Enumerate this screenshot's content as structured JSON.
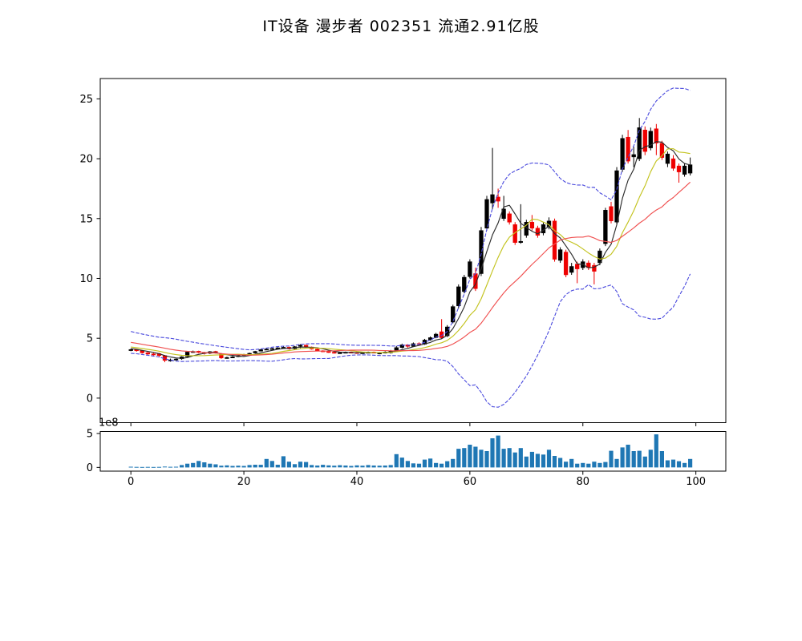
{
  "title": "IT设备 漫步者 002351 流通2.91亿股",
  "chart_data": {
    "type": "candlestick",
    "title": "IT设备 漫步者 002351 流通2.91亿股",
    "panels": [
      {
        "name": "price",
        "type": "candlestick",
        "xlim": [
          -5.42,
          105.3
        ],
        "ylim": [
          -2.05,
          26.7
        ],
        "yticks": [
          0,
          5,
          10,
          15,
          20,
          25
        ],
        "xticks": [
          0,
          20,
          40,
          60,
          80,
          100
        ],
        "grid": false,
        "up_color": "#000000",
        "down_color": "#ee0000",
        "open": [
          3.98,
          4.06,
          3.96,
          3.8,
          3.7,
          3.72,
          3.55,
          3.18,
          3.2,
          3.28,
          3.47,
          3.86,
          3.92,
          3.82,
          3.74,
          3.9,
          3.72,
          3.36,
          3.42,
          3.46,
          3.56,
          3.66,
          3.77,
          3.92,
          4.07,
          4.12,
          4.17,
          4.22,
          4.25,
          4.13,
          4.31,
          4.42,
          4.27,
          4.1,
          3.96,
          3.9,
          3.84,
          3.78,
          3.81,
          3.85,
          3.82,
          3.77,
          3.81,
          3.85,
          3.72,
          3.79,
          3.78,
          3.96,
          4.23,
          4.45,
          4.33,
          4.56,
          4.5,
          4.86,
          5.06,
          5.55,
          5.2,
          6.35,
          7.7,
          8.9,
          10.15,
          10.4,
          10.4,
          14.2,
          16.3,
          16.8,
          15.0,
          15.4,
          14.5,
          13.0,
          13.6,
          14.7,
          14.2,
          13.8,
          14.3,
          14.8,
          11.5,
          12.2,
          10.5,
          11.2,
          10.9,
          11.3,
          11.1,
          11.3,
          12.9,
          16.0,
          14.7,
          19.1,
          21.8,
          20.15,
          20.0,
          22.4,
          20.9,
          22.5,
          21.3,
          19.6,
          20.0,
          19.4,
          18.7,
          18.8
        ],
        "high": [
          4.12,
          4.1,
          4.0,
          3.85,
          3.78,
          3.78,
          3.6,
          3.3,
          3.32,
          3.5,
          3.9,
          3.97,
          3.96,
          3.87,
          3.93,
          3.95,
          3.76,
          3.46,
          3.52,
          3.6,
          3.7,
          3.8,
          3.95,
          4.1,
          4.16,
          4.2,
          4.26,
          4.32,
          4.3,
          4.35,
          4.5,
          4.46,
          4.31,
          4.14,
          4.0,
          3.95,
          3.88,
          3.86,
          3.89,
          3.89,
          3.86,
          3.85,
          3.89,
          3.89,
          3.85,
          3.92,
          4.02,
          4.35,
          4.55,
          4.5,
          4.65,
          4.66,
          4.95,
          5.15,
          5.45,
          6.6,
          6.1,
          7.8,
          9.5,
          10.3,
          11.6,
          10.9,
          14.3,
          16.9,
          20.9,
          17.5,
          16.9,
          15.6,
          14.7,
          16.2,
          14.9,
          15.3,
          14.4,
          14.7,
          15.1,
          15.0,
          12.6,
          12.4,
          11.3,
          11.4,
          11.6,
          11.5,
          11.3,
          12.5,
          15.9,
          16.4,
          19.3,
          22.0,
          22.4,
          21.0,
          23.4,
          22.7,
          22.6,
          22.9,
          21.5,
          20.6,
          20.3,
          19.6,
          19.6,
          20.1
        ],
        "low": [
          3.92,
          3.88,
          3.72,
          3.6,
          3.55,
          3.4,
          3.0,
          3.05,
          3.1,
          3.2,
          3.42,
          3.78,
          3.74,
          3.64,
          3.68,
          3.72,
          3.28,
          3.3,
          3.36,
          3.42,
          3.52,
          3.6,
          3.72,
          3.9,
          4.02,
          4.06,
          4.1,
          4.16,
          4.06,
          4.08,
          4.18,
          4.2,
          4.05,
          3.92,
          3.84,
          3.78,
          3.72,
          3.72,
          3.77,
          3.76,
          3.7,
          3.72,
          3.77,
          3.76,
          3.66,
          3.73,
          3.72,
          3.9,
          4.15,
          4.22,
          4.28,
          4.38,
          4.45,
          4.8,
          5.0,
          4.95,
          5.1,
          6.25,
          7.5,
          8.75,
          10.0,
          8.95,
          10.2,
          14.0,
          15.8,
          15.9,
          14.8,
          14.5,
          12.8,
          12.9,
          13.4,
          14.0,
          13.4,
          13.6,
          14.1,
          11.4,
          11.3,
          10.1,
          10.3,
          9.6,
          10.7,
          10.7,
          9.5,
          11.1,
          12.7,
          14.6,
          14.5,
          18.9,
          19.6,
          19.3,
          19.8,
          20.3,
          20.7,
          20.3,
          19.9,
          19.3,
          19.0,
          18.0,
          18.5,
          18.6
        ],
        "close": [
          4.06,
          3.95,
          3.78,
          3.68,
          3.62,
          3.55,
          3.15,
          3.2,
          3.27,
          3.45,
          3.85,
          3.9,
          3.8,
          3.72,
          3.88,
          3.78,
          3.35,
          3.4,
          3.45,
          3.55,
          3.65,
          3.75,
          3.9,
          4.05,
          4.1,
          4.15,
          4.2,
          4.25,
          4.12,
          4.3,
          4.42,
          4.25,
          4.1,
          3.95,
          3.88,
          3.82,
          3.78,
          3.8,
          3.84,
          3.8,
          3.76,
          3.8,
          3.84,
          3.8,
          3.78,
          3.85,
          3.95,
          4.22,
          4.45,
          4.32,
          4.55,
          4.48,
          4.85,
          5.05,
          5.35,
          5.05,
          5.95,
          7.65,
          9.3,
          10.1,
          11.4,
          9.15,
          14.0,
          16.6,
          17.0,
          16.45,
          15.8,
          14.7,
          13.0,
          13.1,
          14.7,
          14.2,
          13.6,
          14.5,
          14.8,
          11.6,
          12.4,
          10.3,
          11.0,
          10.8,
          11.4,
          10.9,
          10.6,
          12.3,
          15.7,
          14.8,
          19.0,
          21.7,
          19.8,
          20.35,
          22.6,
          20.6,
          22.3,
          21.3,
          20.1,
          20.4,
          19.2,
          18.9,
          19.4,
          19.5
        ],
        "overlays": {
          "moving_averages": [
            {
              "name": "MA5",
              "period": 5,
              "color": "#2b2b2b"
            },
            {
              "name": "MA10",
              "period": 10,
              "color": "#c3c31e"
            },
            {
              "name": "MA20",
              "period": 20,
              "color": "#f05050"
            }
          ],
          "bollinger": {
            "period": 20,
            "num_std": 2,
            "color": "#4848dd",
            "linestyle": "dashed"
          },
          "indicator_warmup_closes": [
            5.6,
            5.5,
            5.4,
            5.3,
            5.2,
            5.1,
            5.0,
            4.9,
            4.8,
            4.7,
            4.6,
            4.5,
            4.45,
            4.4,
            4.35,
            4.3,
            4.25,
            4.2,
            4.1,
            4.05
          ]
        }
      },
      {
        "name": "volume",
        "type": "bar",
        "unit_multiplier_label": "1e8",
        "xlim": [
          -5.42,
          105.3
        ],
        "ylim": [
          -0.55,
          5.3
        ],
        "yticks": [
          0,
          5
        ],
        "bar_color": "#1f77b4",
        "values_1e8": [
          0.1,
          0.08,
          0.07,
          0.08,
          0.07,
          0.08,
          0.12,
          0.09,
          0.1,
          0.35,
          0.55,
          0.65,
          0.95,
          0.75,
          0.55,
          0.45,
          0.25,
          0.3,
          0.22,
          0.25,
          0.22,
          0.35,
          0.4,
          0.38,
          1.25,
          0.95,
          0.4,
          1.65,
          0.85,
          0.48,
          0.85,
          0.8,
          0.35,
          0.28,
          0.38,
          0.3,
          0.25,
          0.32,
          0.28,
          0.22,
          0.3,
          0.25,
          0.35,
          0.28,
          0.25,
          0.28,
          0.35,
          1.95,
          1.45,
          0.95,
          0.6,
          0.55,
          1.15,
          1.3,
          0.65,
          0.55,
          0.92,
          1.25,
          2.75,
          2.85,
          3.35,
          3.05,
          2.6,
          2.4,
          4.3,
          4.7,
          2.75,
          2.85,
          2.2,
          2.85,
          1.6,
          2.3,
          2.0,
          1.9,
          2.6,
          1.7,
          1.4,
          0.85,
          1.25,
          0.55,
          0.65,
          0.55,
          0.85,
          0.65,
          0.8,
          2.45,
          1.25,
          2.95,
          3.35,
          2.4,
          2.45,
          1.6,
          2.6,
          4.88,
          2.4,
          1.05,
          1.15,
          0.92,
          0.65,
          1.25
        ]
      }
    ],
    "xtick_labels": [
      "0",
      "20",
      "40",
      "60",
      "80",
      "100"
    ],
    "axis_color": "#000000",
    "background_color": "#ffffff"
  }
}
